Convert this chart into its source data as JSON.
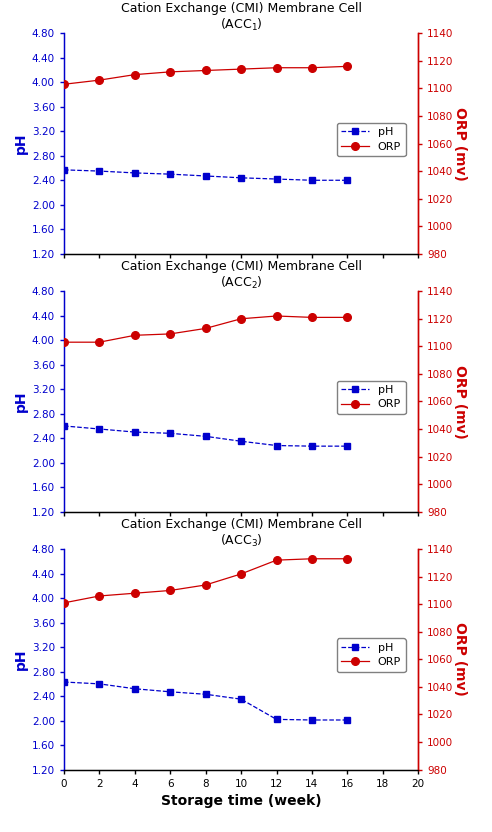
{
  "panels": [
    {
      "title_line1": "Cation Exchange (CMI) Membrane Cell",
      "title_line2": "(ACC$_1$)",
      "x": [
        0,
        2,
        4,
        6,
        8,
        10,
        12,
        14,
        16
      ],
      "pH": [
        2.57,
        2.55,
        2.52,
        2.5,
        2.47,
        2.44,
        2.42,
        2.4,
        2.4
      ],
      "ORP": [
        1103,
        1106,
        1110,
        1112,
        1113,
        1114,
        1115,
        1115,
        1116
      ]
    },
    {
      "title_line1": "Cation Exchange (CMI) Membrane Cell",
      "title_line2": "(ACC$_2$)",
      "x": [
        0,
        2,
        4,
        6,
        8,
        10,
        12,
        14,
        16
      ],
      "pH": [
        2.6,
        2.55,
        2.5,
        2.48,
        2.43,
        2.35,
        2.28,
        2.27,
        2.27
      ],
      "ORP": [
        1103,
        1103,
        1108,
        1109,
        1113,
        1120,
        1122,
        1121,
        1121
      ]
    },
    {
      "title_line1": "Cation Exchange (CMI) Membrane Cell",
      "title_line2": "(ACC$_3$)",
      "x": [
        0,
        2,
        4,
        6,
        8,
        10,
        12,
        14,
        16
      ],
      "pH": [
        2.63,
        2.6,
        2.52,
        2.47,
        2.43,
        2.35,
        2.02,
        2.01,
        2.01
      ],
      "ORP": [
        1101,
        1106,
        1108,
        1110,
        1114,
        1122,
        1132,
        1133,
        1133
      ]
    }
  ],
  "pH_color": "#0000cc",
  "ORP_color": "#cc0000",
  "pH_ylim": [
    1.2,
    4.8
  ],
  "pH_yticks": [
    1.2,
    1.6,
    2.0,
    2.4,
    2.8,
    3.2,
    3.6,
    4.0,
    4.4,
    4.8
  ],
  "ORP_ylim": [
    980,
    1140
  ],
  "ORP_yticks": [
    980,
    1000,
    1020,
    1040,
    1060,
    1080,
    1100,
    1120,
    1140
  ],
  "xlim": [
    0,
    20
  ],
  "xticks": [
    0,
    2,
    4,
    6,
    8,
    10,
    12,
    14,
    16,
    18,
    20
  ],
  "xlabel": "Storage time (week)",
  "ylabel_left": "pH",
  "ylabel_right": "ORP (mv)"
}
